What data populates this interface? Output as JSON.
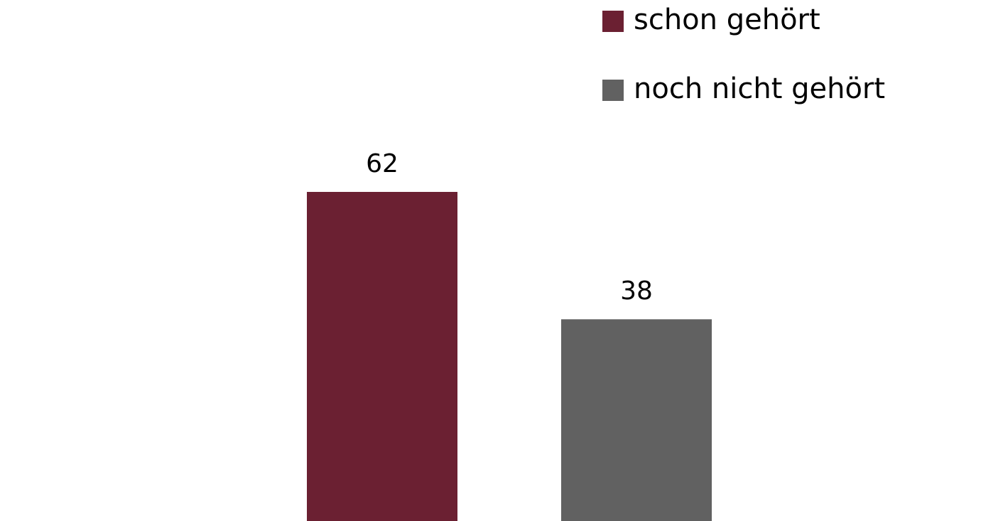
{
  "chart_data": {
    "type": "bar",
    "series": [
      {
        "name": "schon gehört",
        "color": "#6b2032",
        "values": [
          62
        ]
      },
      {
        "name": "noch nicht gehört",
        "color": "#616161",
        "values": [
          38
        ]
      }
    ],
    "legend": "top-right"
  }
}
